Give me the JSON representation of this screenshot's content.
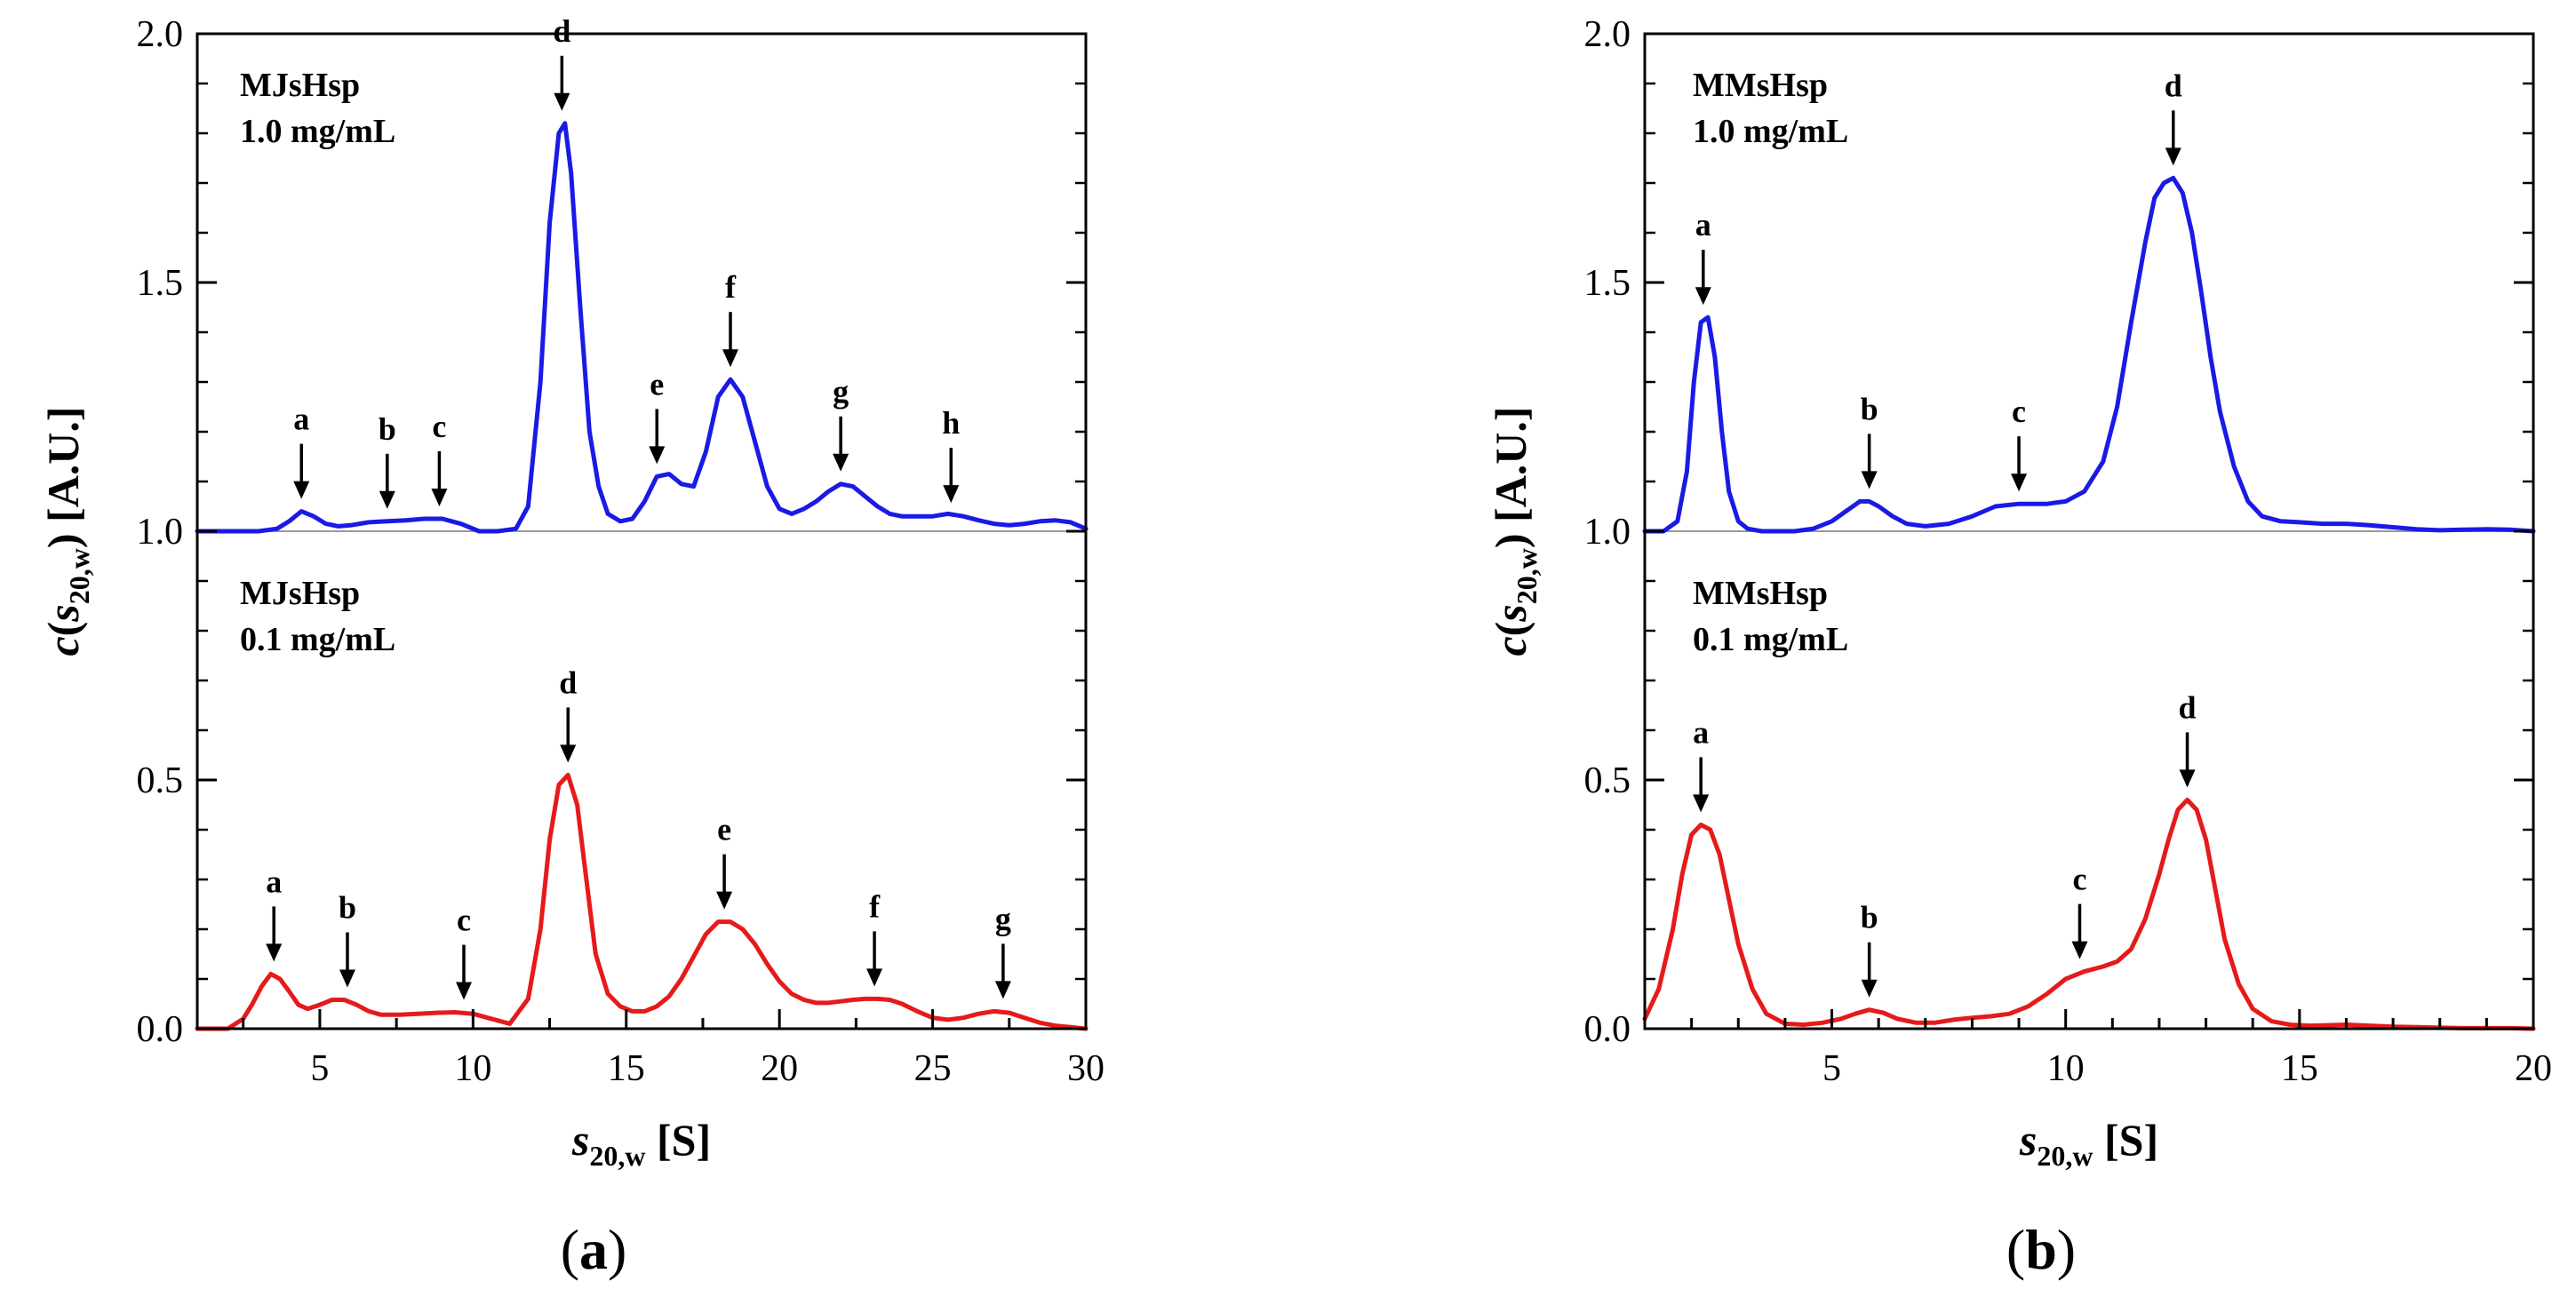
{
  "panel_labels": {
    "a_open": "(",
    "a_letter": "a",
    "a_close": ")",
    "b_open": "(",
    "b_letter": "b",
    "b_close": ")"
  },
  "colors": {
    "upper_trace": "#1a1ae6",
    "lower_trace": "#e61a1a",
    "baseline": "#999999",
    "axis": "#000000"
  },
  "chart_data": [
    {
      "id": "a",
      "type": "line",
      "caption": "(a)",
      "xlabel": "s20,w [S]",
      "ylabel": "c(s20,w) [A.U.]",
      "xlim": [
        1,
        30
      ],
      "ylim": [
        0,
        2
      ],
      "xticks": [
        5,
        10,
        15,
        20,
        25,
        30
      ],
      "yticks": [
        0.0,
        0.5,
        1.0,
        1.5,
        2.0
      ],
      "ytick_labels": [
        "0.0",
        "0.5",
        "1.0",
        "1.5",
        "2.0"
      ],
      "baseline_y": 1.0,
      "series": [
        {
          "name": "MJsHsp 1.0 mg/mL",
          "label_line1": "MJsHsp",
          "label_line2": "1.0 mg/mL",
          "color": "#1a1ae6",
          "x": [
            1.0,
            3.0,
            3.6,
            4.0,
            4.4,
            4.8,
            5.2,
            5.6,
            6.0,
            6.6,
            7.2,
            7.8,
            8.4,
            9.0,
            9.6,
            10.2,
            10.8,
            11.4,
            11.8,
            12.2,
            12.5,
            12.8,
            13.0,
            13.2,
            13.5,
            13.8,
            14.1,
            14.4,
            14.8,
            15.2,
            15.6,
            16.0,
            16.4,
            16.8,
            17.2,
            17.6,
            18.0,
            18.4,
            18.8,
            19.2,
            19.6,
            20.0,
            20.4,
            20.8,
            21.2,
            21.6,
            22.0,
            22.4,
            22.8,
            23.2,
            23.6,
            24.0,
            24.5,
            25.0,
            25.5,
            26.0,
            26.5,
            27.0,
            27.5,
            28.0,
            28.5,
            29.0,
            29.5,
            30.0
          ],
          "y": [
            1.0,
            1.0,
            1.005,
            1.02,
            1.04,
            1.03,
            1.015,
            1.01,
            1.012,
            1.018,
            1.02,
            1.022,
            1.025,
            1.025,
            1.015,
            1.0,
            1.0,
            1.005,
            1.05,
            1.3,
            1.62,
            1.8,
            1.82,
            1.72,
            1.45,
            1.2,
            1.09,
            1.035,
            1.02,
            1.025,
            1.06,
            1.11,
            1.115,
            1.095,
            1.09,
            1.16,
            1.27,
            1.305,
            1.27,
            1.18,
            1.09,
            1.045,
            1.035,
            1.045,
            1.06,
            1.08,
            1.095,
            1.09,
            1.07,
            1.05,
            1.035,
            1.03,
            1.03,
            1.03,
            1.035,
            1.03,
            1.022,
            1.015,
            1.012,
            1.015,
            1.02,
            1.022,
            1.018,
            1.005
          ]
        },
        {
          "name": "MJsHsp 0.1 mg/mL",
          "label_line1": "MJsHsp",
          "label_line2": "0.1 mg/mL",
          "color": "#e61a1a",
          "x": [
            1.0,
            2.0,
            2.5,
            2.8,
            3.1,
            3.4,
            3.7,
            4.0,
            4.3,
            4.6,
            5.0,
            5.4,
            5.8,
            6.2,
            6.6,
            7.0,
            7.6,
            8.2,
            8.8,
            9.4,
            10.0,
            10.6,
            11.2,
            11.8,
            12.2,
            12.5,
            12.8,
            13.1,
            13.4,
            13.7,
            14.0,
            14.4,
            14.8,
            15.2,
            15.6,
            16.0,
            16.4,
            16.8,
            17.2,
            17.6,
            18.0,
            18.4,
            18.8,
            19.2,
            19.6,
            20.0,
            20.4,
            20.8,
            21.2,
            21.6,
            22.0,
            22.4,
            22.8,
            23.2,
            23.6,
            24.0,
            24.5,
            25.0,
            25.5,
            26.0,
            26.5,
            27.0,
            27.5,
            28.0,
            28.5,
            29.0,
            29.5,
            30.0
          ],
          "y": [
            0.0,
            0.0,
            0.02,
            0.05,
            0.085,
            0.11,
            0.1,
            0.075,
            0.048,
            0.04,
            0.048,
            0.058,
            0.058,
            0.048,
            0.035,
            0.028,
            0.028,
            0.03,
            0.032,
            0.033,
            0.03,
            0.02,
            0.01,
            0.06,
            0.2,
            0.38,
            0.49,
            0.51,
            0.45,
            0.3,
            0.15,
            0.07,
            0.045,
            0.035,
            0.035,
            0.045,
            0.065,
            0.1,
            0.145,
            0.19,
            0.215,
            0.215,
            0.2,
            0.17,
            0.13,
            0.095,
            0.07,
            0.058,
            0.052,
            0.052,
            0.055,
            0.058,
            0.06,
            0.06,
            0.058,
            0.05,
            0.035,
            0.022,
            0.018,
            0.022,
            0.03,
            0.035,
            0.032,
            0.022,
            0.012,
            0.006,
            0.003,
            0.0
          ]
        }
      ],
      "annotations_upper": [
        {
          "label": "a",
          "x": 4.4,
          "y": 1.04
        },
        {
          "label": "b",
          "x": 7.2,
          "y": 1.02
        },
        {
          "label": "c",
          "x": 8.9,
          "y": 1.025
        },
        {
          "label": "d",
          "x": 12.9,
          "y": 1.82
        },
        {
          "label": "e",
          "x": 16.0,
          "y": 1.11
        },
        {
          "label": "f",
          "x": 18.4,
          "y": 1.305
        },
        {
          "label": "g",
          "x": 22.0,
          "y": 1.095
        },
        {
          "label": "h",
          "x": 25.6,
          "y": 1.032
        }
      ],
      "annotations_lower": [
        {
          "label": "a",
          "x": 3.5,
          "y": 0.11
        },
        {
          "label": "b",
          "x": 5.9,
          "y": 0.058
        },
        {
          "label": "c",
          "x": 9.7,
          "y": 0.033
        },
        {
          "label": "d",
          "x": 13.1,
          "y": 0.51
        },
        {
          "label": "e",
          "x": 18.2,
          "y": 0.215
        },
        {
          "label": "f",
          "x": 23.1,
          "y": 0.06
        },
        {
          "label": "g",
          "x": 27.3,
          "y": 0.035
        }
      ]
    },
    {
      "id": "b",
      "type": "line",
      "caption": "(b)",
      "xlabel": "s20,w [S]",
      "ylabel": "c(s20,w) [A.U.]",
      "xlim": [
        1,
        20
      ],
      "ylim": [
        0,
        2
      ],
      "xticks": [
        5,
        10,
        15,
        20
      ],
      "yticks": [
        0.0,
        0.5,
        1.0,
        1.5,
        2.0
      ],
      "ytick_labels": [
        "0.0",
        "0.5",
        "1.0",
        "1.5",
        "2.0"
      ],
      "baseline_y": 1.0,
      "series": [
        {
          "name": "MMsHsp 1.0 mg/mL",
          "label_line1": "MMsHsp",
          "label_line2": "1.0 mg/mL",
          "color": "#1a1ae6",
          "x": [
            1.0,
            1.4,
            1.7,
            1.9,
            2.05,
            2.2,
            2.35,
            2.5,
            2.65,
            2.8,
            3.0,
            3.2,
            3.5,
            3.8,
            4.2,
            4.6,
            5.0,
            5.3,
            5.6,
            5.8,
            6.0,
            6.3,
            6.6,
            7.0,
            7.5,
            8.0,
            8.5,
            9.0,
            9.3,
            9.6,
            10.0,
            10.4,
            10.8,
            11.1,
            11.4,
            11.7,
            11.9,
            12.1,
            12.3,
            12.5,
            12.7,
            12.9,
            13.1,
            13.3,
            13.6,
            13.9,
            14.2,
            14.6,
            15.0,
            15.5,
            16.0,
            16.5,
            17.0,
            17.5,
            18.0,
            18.5,
            19.0,
            19.5,
            20.0
          ],
          "y": [
            1.0,
            1.0,
            1.02,
            1.12,
            1.3,
            1.42,
            1.43,
            1.35,
            1.2,
            1.08,
            1.02,
            1.005,
            1.0,
            1.0,
            1.0,
            1.005,
            1.02,
            1.04,
            1.06,
            1.06,
            1.05,
            1.03,
            1.015,
            1.01,
            1.015,
            1.03,
            1.05,
            1.055,
            1.055,
            1.055,
            1.06,
            1.08,
            1.14,
            1.25,
            1.42,
            1.58,
            1.67,
            1.7,
            1.71,
            1.68,
            1.6,
            1.48,
            1.35,
            1.24,
            1.13,
            1.06,
            1.03,
            1.02,
            1.018,
            1.015,
            1.015,
            1.012,
            1.008,
            1.004,
            1.002,
            1.003,
            1.004,
            1.003,
            1.0
          ]
        },
        {
          "name": "MMsHsp 0.1 mg/mL",
          "label_line1": "MMsHsp",
          "label_line2": "0.1 mg/mL",
          "color": "#e61a1a",
          "x": [
            1.0,
            1.3,
            1.6,
            1.8,
            2.0,
            2.2,
            2.4,
            2.6,
            2.8,
            3.0,
            3.3,
            3.6,
            4.0,
            4.4,
            4.8,
            5.2,
            5.5,
            5.8,
            6.1,
            6.4,
            6.8,
            7.2,
            7.6,
            8.0,
            8.4,
            8.8,
            9.2,
            9.6,
            10.0,
            10.4,
            10.8,
            11.1,
            11.4,
            11.7,
            12.0,
            12.2,
            12.4,
            12.6,
            12.8,
            13.0,
            13.2,
            13.4,
            13.7,
            14.0,
            14.4,
            14.8,
            15.2,
            15.6,
            16.0,
            16.5,
            17.0,
            17.5,
            18.0,
            18.5,
            19.0,
            19.5,
            20.0
          ],
          "y": [
            0.02,
            0.08,
            0.2,
            0.31,
            0.39,
            0.41,
            0.4,
            0.35,
            0.26,
            0.17,
            0.08,
            0.03,
            0.01,
            0.008,
            0.012,
            0.02,
            0.03,
            0.038,
            0.032,
            0.02,
            0.012,
            0.012,
            0.018,
            0.022,
            0.025,
            0.03,
            0.045,
            0.07,
            0.1,
            0.115,
            0.125,
            0.135,
            0.16,
            0.22,
            0.31,
            0.38,
            0.44,
            0.46,
            0.44,
            0.38,
            0.28,
            0.18,
            0.09,
            0.04,
            0.015,
            0.008,
            0.006,
            0.007,
            0.008,
            0.006,
            0.004,
            0.003,
            0.002,
            0.001,
            0.001,
            0.001,
            0.0
          ]
        }
      ],
      "annotations_upper": [
        {
          "label": "a",
          "x": 2.25,
          "y": 1.43
        },
        {
          "label": "b",
          "x": 5.8,
          "y": 1.06
        },
        {
          "label": "c",
          "x": 9.0,
          "y": 1.055
        },
        {
          "label": "d",
          "x": 12.3,
          "y": 1.71
        }
      ],
      "annotations_lower": [
        {
          "label": "a",
          "x": 2.2,
          "y": 0.41
        },
        {
          "label": "b",
          "x": 5.8,
          "y": 0.038
        },
        {
          "label": "c",
          "x": 10.3,
          "y": 0.115
        },
        {
          "label": "d",
          "x": 12.6,
          "y": 0.46
        }
      ]
    }
  ]
}
